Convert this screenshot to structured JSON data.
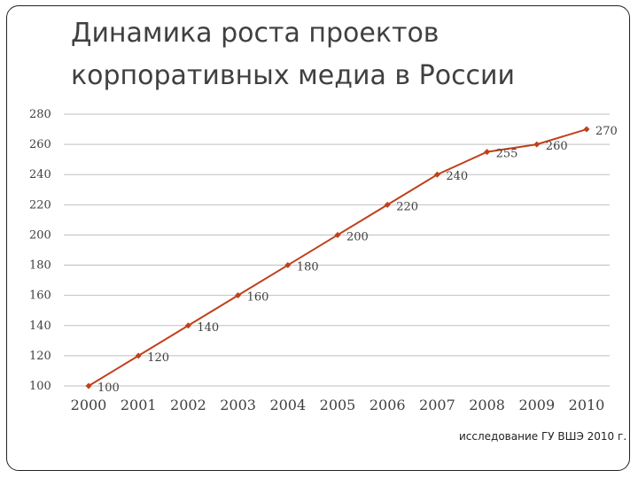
{
  "slide": {
    "title_line1": "Динамика роста проектов",
    "title_line2": "корпоративных медиа в России",
    "source": "исследование ГУ ВШЭ 2010 г."
  },
  "chart_data": {
    "type": "line",
    "x": [
      "2000",
      "2001",
      "2002",
      "2003",
      "2004",
      "2005",
      "2006",
      "2007",
      "2008",
      "2009",
      "2010"
    ],
    "series": [
      {
        "values": [
          100,
          120,
          140,
          160,
          180,
          200,
          220,
          240,
          255,
          260,
          270
        ]
      }
    ],
    "data_labels": [
      "100",
      "120",
      "140",
      "160",
      "180",
      "200",
      "220",
      "240",
      "255",
      "260",
      "270"
    ],
    "yticks": [
      "100",
      "120",
      "140",
      "160",
      "180",
      "200",
      "220",
      "240",
      "260",
      "280"
    ],
    "ylim": [
      100,
      280
    ],
    "grid": true,
    "color": "#c0401a",
    "gridColor": "#bfbfbf"
  }
}
